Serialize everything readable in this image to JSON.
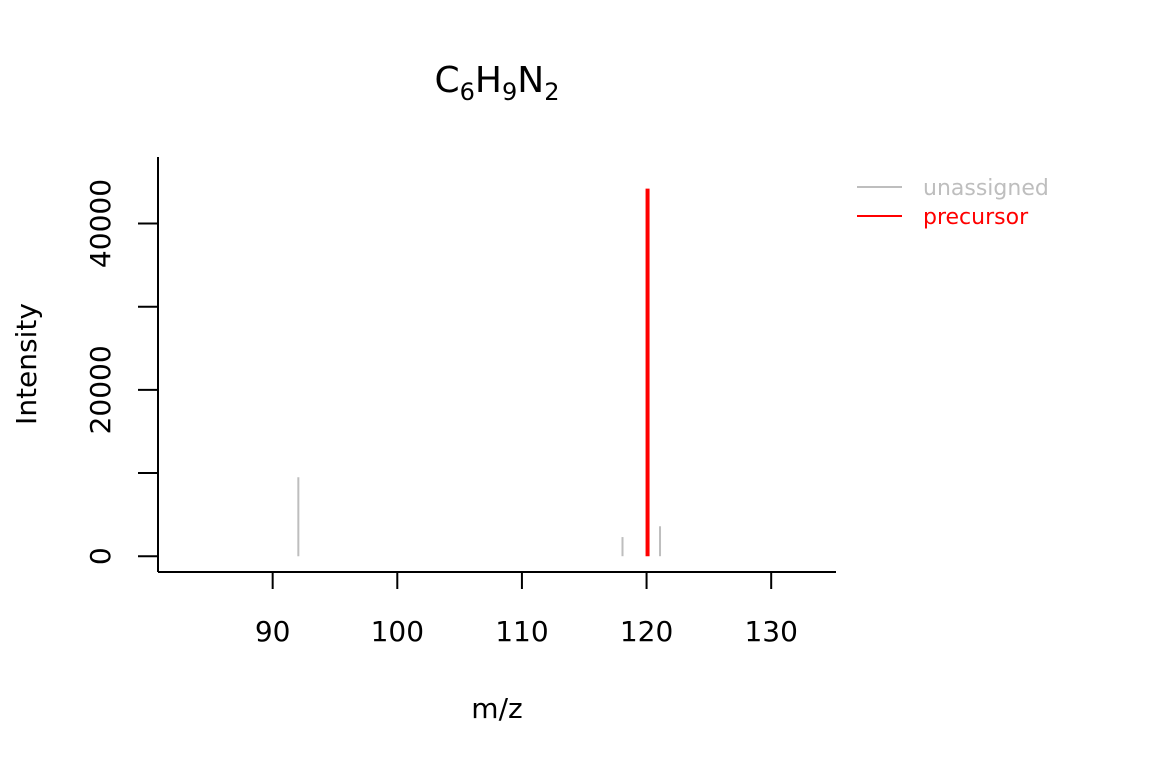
{
  "chart_data": {
    "type": "bar",
    "title": {
      "parts": [
        {
          "text": "C",
          "sub": false
        },
        {
          "text": "6",
          "sub": true
        },
        {
          "text": "H",
          "sub": false
        },
        {
          "text": "9",
          "sub": true
        },
        {
          "text": "N",
          "sub": false
        },
        {
          "text": "2",
          "sub": true
        }
      ]
    },
    "xlabel": "m/z",
    "ylabel": "Intensity",
    "xlim": [
      80.8,
      135.2
    ],
    "ylim": [
      -1900,
      48000
    ],
    "x_ticks": [
      90,
      100,
      110,
      120,
      130
    ],
    "y_ticks": [
      0,
      10000,
      20000,
      30000,
      40000
    ],
    "y_tick_labels": [
      {
        "value": 0,
        "label": "0"
      },
      {
        "value": 20000,
        "label": "20000"
      },
      {
        "value": 40000,
        "label": "40000"
      }
    ],
    "grid": false,
    "legend_position": "top-right",
    "series": [
      {
        "name": "unassigned",
        "color": "#bebebe",
        "points": [
          {
            "x": 92.06,
            "y": 9500
          },
          {
            "x": 118.07,
            "y": 2300
          },
          {
            "x": 121.08,
            "y": 3600
          }
        ]
      },
      {
        "name": "precursor",
        "color": "#ff0000",
        "points": [
          {
            "x": 120.08,
            "y": 44200
          }
        ]
      }
    ]
  }
}
